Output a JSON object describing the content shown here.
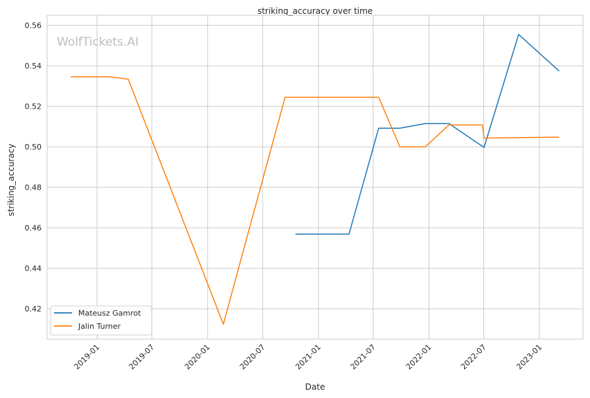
{
  "chart_data": {
    "type": "line",
    "title": "striking_accuracy over time",
    "xlabel": "Date",
    "ylabel": "striking_accuracy",
    "watermark": "WolfTickets.AI",
    "xlim": [
      "2018-07-20",
      "2023-05-25"
    ],
    "ylim": [
      0.405,
      0.565
    ],
    "grid": true,
    "legend_placement": "bottom-left",
    "x_ticks": [
      "2019-01",
      "2019-07",
      "2020-01",
      "2020-07",
      "2021-01",
      "2021-07",
      "2022-01",
      "2022-07",
      "2023-01"
    ],
    "y_ticks": [
      "0.42",
      "0.44",
      "0.46",
      "0.48",
      "0.50",
      "0.52",
      "0.54",
      "0.56"
    ],
    "series": [
      {
        "name": "Mateusz Gamrot",
        "color": "#1f77b4",
        "x": [
          "2020-10-17",
          "2021-04-12",
          "2021-07-19",
          "2021-09-27",
          "2021-12-20",
          "2022-03-08",
          "2022-07-02",
          "2022-10-24",
          "2023-03-07"
        ],
        "y": [
          0.4569,
          0.4569,
          0.5092,
          0.5092,
          0.5115,
          0.5115,
          0.4997,
          0.5555,
          0.5374
        ]
      },
      {
        "name": "Jalin Turner",
        "color": "#ff7f0e",
        "x": [
          "2018-10-06",
          "2019-02-10",
          "2019-04-14",
          "2020-02-22",
          "2020-09-13",
          "2021-07-19",
          "2021-09-27",
          "2021-12-20",
          "2022-03-08",
          "2022-06-27",
          "2022-07-02",
          "2023-03-07"
        ],
        "y": [
          0.5346,
          0.5346,
          0.5334,
          0.4124,
          0.5245,
          0.5245,
          0.5,
          0.5,
          0.5108,
          0.5108,
          0.5043,
          0.5048
        ]
      }
    ]
  }
}
